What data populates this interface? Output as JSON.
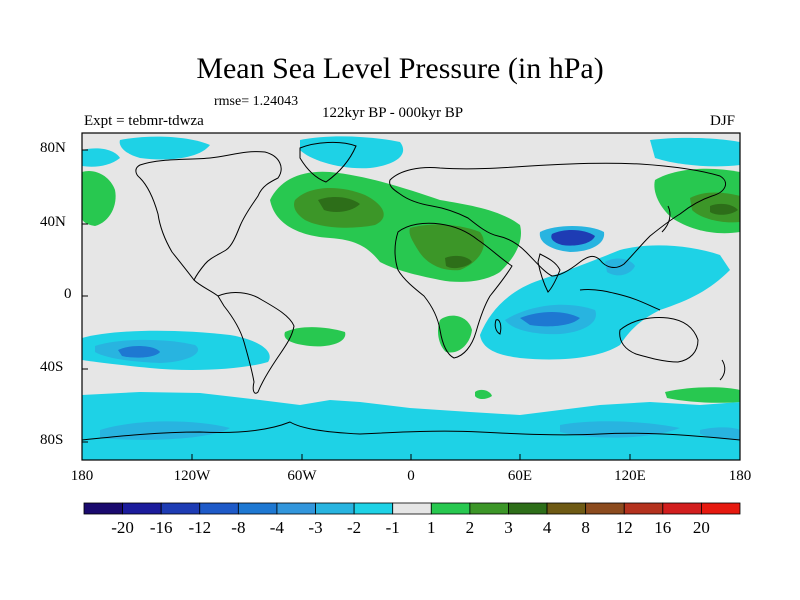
{
  "title": "Mean Sea Level Pressure (in hPa)",
  "rmse": "rmse= 1.24043",
  "experiment": "Expt = tebmr-tdwza",
  "period": "122kyr BP - 000kyr BP",
  "season": "DJF",
  "axes": {
    "lat_labels": [
      "80N",
      "40N",
      "0",
      "40S",
      "80S"
    ],
    "lon_labels": [
      "180",
      "120W",
      "60W",
      "0",
      "60E",
      "120E",
      "180"
    ]
  },
  "colorbar": {
    "labels": [
      "-20",
      "-16",
      "-12",
      "-8",
      "-4",
      "-3",
      "-2",
      "-1",
      "1",
      "2",
      "3",
      "4",
      "8",
      "12",
      "16",
      "20"
    ],
    "colors": [
      "#1a0a6e",
      "#1c1c9c",
      "#1e3cb4",
      "#1e5ac8",
      "#1e78d2",
      "#3296dc",
      "#28b4e0",
      "#1ed2e6",
      "#e6e6e6",
      "#28c850",
      "#3c9628",
      "#2d6e19",
      "#6e5a14",
      "#8c4b1e",
      "#b4321e",
      "#d21e1e",
      "#e6190f"
    ]
  },
  "palette": {
    "neutral": "#e6e6e6",
    "cyan": "#1ed2e6",
    "lightblue": "#28b4e0",
    "blue": "#1e78d2",
    "darkblue": "#1e3cb4",
    "green": "#28c850",
    "midgreen": "#3c9628",
    "darkgreen": "#2d6e19",
    "coast": "#000000"
  }
}
